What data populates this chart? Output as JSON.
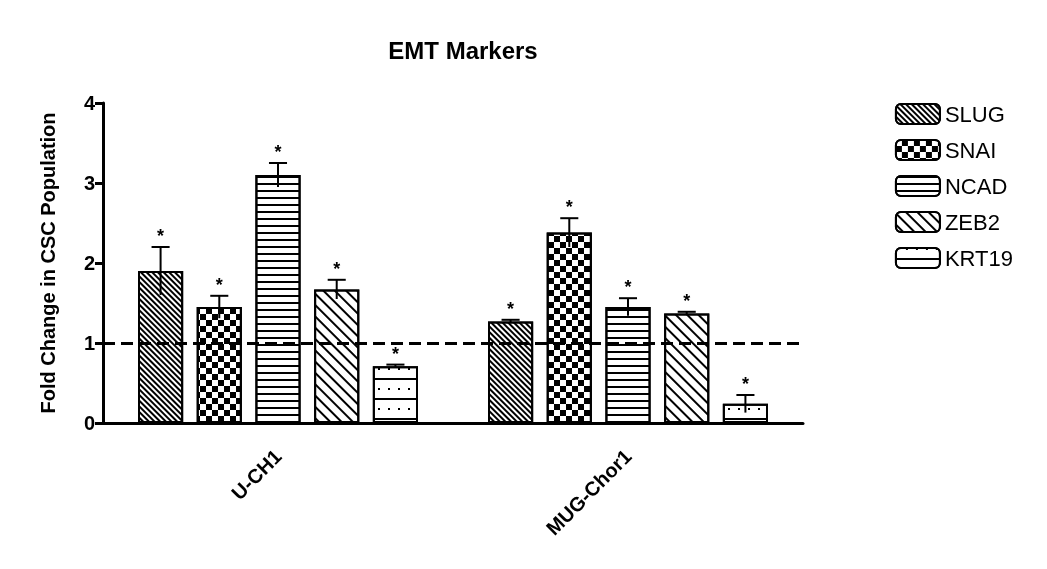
{
  "chart_data": {
    "type": "bar",
    "title": "EMT Markers",
    "ylabel": "Fold Change in CSC Population",
    "categories": [
      "U-CH1",
      "MUG-Chor1"
    ],
    "series": [
      {
        "name": "SLUG",
        "color": "#000000",
        "values": [
          1.9,
          1.27
        ],
        "errors": [
          0.3,
          0.02
        ],
        "value_labels": [
          "*",
          "*"
        ]
      },
      {
        "name": "SNAI",
        "color": "#000000",
        "values": [
          1.45,
          2.38
        ],
        "errors": [
          0.14,
          0.18
        ],
        "value_labels": [
          "*",
          "*"
        ]
      },
      {
        "name": "NCAD",
        "color": "#000000",
        "values": [
          3.1,
          1.45
        ],
        "errors": [
          0.15,
          0.11
        ],
        "value_labels": [
          "*",
          "*"
        ]
      },
      {
        "name": "ZEB2",
        "color": "#000000",
        "values": [
          1.67,
          1.37
        ],
        "errors": [
          0.12,
          0.02
        ],
        "value_labels": [
          "*",
          "*"
        ]
      },
      {
        "name": "KRT19",
        "color": "#000000",
        "values": [
          0.71,
          0.24
        ],
        "errors": [
          0.02,
          0.11
        ],
        "value_labels": [
          "*",
          "*"
        ]
      }
    ],
    "ylim": [
      0,
      4
    ],
    "yticks": [
      0,
      1,
      2,
      3,
      4
    ],
    "grid": false,
    "legend": "top right",
    "ref_lines": [
      {
        "axis": "y",
        "value": 1,
        "line_style": "dashed",
        "color": "#000000"
      }
    ]
  }
}
